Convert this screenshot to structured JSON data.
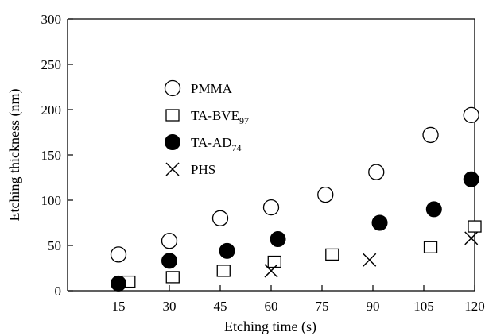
{
  "chart_data": {
    "type": "scatter",
    "title": "",
    "xlabel": "Etching time (s)",
    "ylabel": "Etching thickness (nm)",
    "xlim": [
      0,
      120
    ],
    "ylim": [
      0,
      300
    ],
    "xticks": [
      15,
      30,
      45,
      60,
      75,
      90,
      105,
      120
    ],
    "yticks": [
      0,
      50,
      100,
      150,
      200,
      250,
      300
    ],
    "grid": false,
    "legend_position": "upper-left inside",
    "series": [
      {
        "name": "PMMA",
        "name_parts": [
          {
            "text": "PMMA",
            "sub": ""
          }
        ],
        "marker": "open-circle",
        "points": [
          [
            15,
            40
          ],
          [
            30,
            55
          ],
          [
            45,
            80
          ],
          [
            60,
            92
          ],
          [
            76,
            106
          ],
          [
            91,
            131
          ],
          [
            107,
            172
          ],
          [
            119,
            194
          ]
        ]
      },
      {
        "name": "TA-BVE97",
        "name_parts": [
          {
            "text": "TA-BVE",
            "sub": "97"
          }
        ],
        "marker": "open-square",
        "points": [
          [
            18,
            10
          ],
          [
            31,
            15
          ],
          [
            46,
            22
          ],
          [
            61,
            32
          ],
          [
            78,
            40
          ],
          [
            107,
            48
          ],
          [
            120,
            71
          ]
        ]
      },
      {
        "name": "TA-AD74",
        "name_parts": [
          {
            "text": "TA-AD",
            "sub": "74"
          }
        ],
        "marker": "filled-circle",
        "points": [
          [
            15,
            8
          ],
          [
            30,
            33
          ],
          [
            47,
            44
          ],
          [
            62,
            57
          ],
          [
            92,
            75
          ],
          [
            108,
            90
          ],
          [
            119,
            123
          ]
        ]
      },
      {
        "name": "PHS",
        "name_parts": [
          {
            "text": "PHS",
            "sub": ""
          }
        ],
        "marker": "cross",
        "points": [
          [
            60,
            22
          ],
          [
            89,
            34
          ],
          [
            119,
            58
          ]
        ]
      }
    ]
  }
}
